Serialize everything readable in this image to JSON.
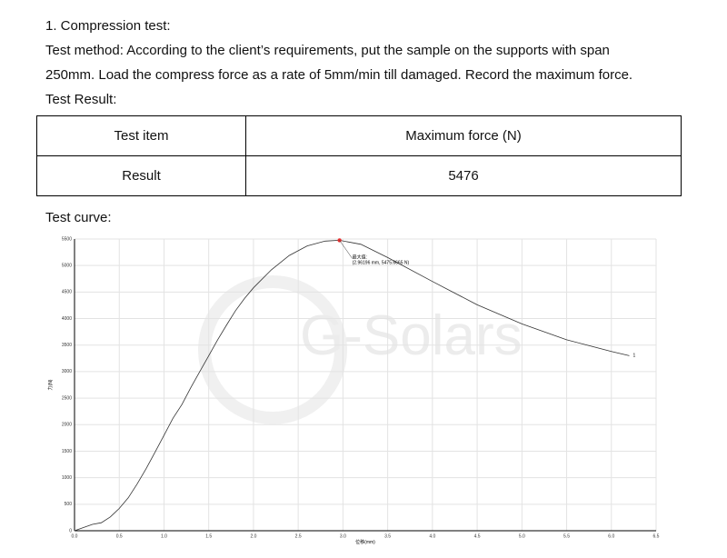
{
  "document": {
    "heading": "1. Compression test:",
    "method_line_1": "Test method: According to the client’s requirements, put the sample on the supports with span",
    "method_line_2": "250mm. Load the compress force as a rate of 5mm/min till damaged. Record the maximum force.",
    "result_label": "Test Result:",
    "curve_label": "Test curve:"
  },
  "table": {
    "rows": [
      [
        "Test item",
        "Maximum force (N)"
      ],
      [
        "Result",
        "5476"
      ]
    ]
  },
  "chart_data": {
    "type": "line",
    "watermark": "G-Solars",
    "x_label": "位移(mm)",
    "y_label": "力(N)",
    "annotation_title": "最大值:",
    "annotation": "(2.96196 mm, 5475.6665 N)",
    "end_label": "1",
    "xlim": [
      0,
      6.5
    ],
    "ylim": [
      0,
      5500
    ],
    "xticks": [
      {
        "value": 0,
        "label": "0.0"
      },
      0.5,
      {
        "value": 1,
        "label": "1.0"
      },
      1.5,
      {
        "value": 2,
        "label": "2.0"
      },
      2.5,
      {
        "value": 3,
        "label": "3.0"
      },
      3.5,
      {
        "value": 4,
        "label": "4.0"
      },
      4.5,
      {
        "value": 5,
        "label": "5.0"
      },
      5.5,
      {
        "value": 6,
        "label": "6.0"
      },
      6.5
    ],
    "yticks": [
      0,
      500,
      1000,
      1500,
      2000,
      2500,
      3000,
      3500,
      4000,
      4500,
      5000,
      5500
    ],
    "grid": true,
    "max_index": 25,
    "max_color": "#e53030",
    "series": [
      {
        "color": "#333333",
        "x": [
          0,
          0.1,
          0.2,
          0.3,
          0.4,
          0.5,
          0.6,
          0.7,
          0.8,
          0.9,
          1.0,
          1.1,
          1.2,
          1.3,
          1.4,
          1.5,
          1.6,
          1.7,
          1.8,
          1.9,
          2.0,
          2.2,
          2.4,
          2.6,
          2.8,
          2.96196,
          3.2,
          3.5,
          4.0,
          4.5,
          5.0,
          5.5,
          6.0,
          6.2
        ],
        "values": [
          0,
          60,
          120,
          150,
          260,
          420,
          620,
          880,
          1170,
          1480,
          1800,
          2120,
          2380,
          2700,
          3000,
          3300,
          3600,
          3880,
          4150,
          4380,
          4580,
          4920,
          5190,
          5370,
          5460,
          5475.6665,
          5400,
          5150,
          4700,
          4260,
          3900,
          3600,
          3380,
          3300
        ]
      }
    ]
  }
}
